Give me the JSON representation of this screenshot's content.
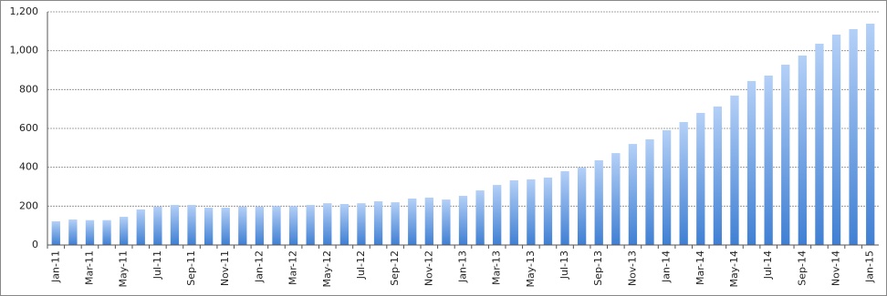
{
  "chart_data": {
    "type": "bar",
    "categories": [
      "Jan-11",
      null,
      "Mar-11",
      null,
      "May-11",
      null,
      "Jul-11",
      null,
      "Sep-11",
      null,
      "Nov-11",
      null,
      "Jan-12",
      null,
      "Mar-12",
      null,
      "May-12",
      null,
      "Jul-12",
      null,
      "Sep-12",
      null,
      "Nov-12",
      null,
      "Jan-13",
      null,
      "Mar-13",
      null,
      "May-13",
      null,
      "Jul-13",
      null,
      "Sep-13",
      null,
      "Nov-13",
      null,
      "Jan-14",
      null,
      "Mar-14",
      null,
      "May-14",
      null,
      "Jul-14",
      null,
      "Sep-14",
      null,
      "Nov-14",
      null,
      "Jan-15"
    ],
    "values": [
      122,
      131,
      128,
      128,
      145,
      183,
      197,
      206,
      206,
      192,
      192,
      197,
      197,
      200,
      200,
      206,
      215,
      211,
      215,
      225,
      220,
      239,
      244,
      234,
      253,
      281,
      309,
      333,
      338,
      347,
      380,
      398,
      436,
      473,
      520,
      544,
      591,
      633,
      680,
      713,
      769,
      844,
      872,
      928,
      975,
      1036,
      1083,
      1111,
      1139
    ],
    "color": "#3f7fd3",
    "ylim": [
      0,
      1200
    ],
    "yticks": [
      0,
      200,
      400,
      600,
      800,
      {
        "value": 1000,
        "label": "1,000"
      },
      {
        "value": 1200,
        "label": "1,200"
      }
    ],
    "grid": true
  }
}
